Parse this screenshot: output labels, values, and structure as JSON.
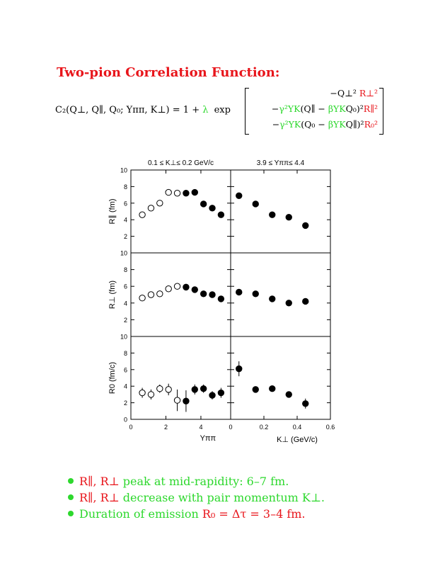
{
  "title": "Two-pion Correlation Function:",
  "equation": {
    "lhs": "C₂(Q⊥, Q∥, Q₀; Yππ, K⊥) = 1 + ",
    "lambda": "λ",
    "exp": " exp",
    "row1_a": "−Q⊥² ",
    "row1_b": "R⊥²",
    "row2_a": "−",
    "row2_b": "γ²YK",
    "row2_c": "(Q∥ − ",
    "row2_d": "βYK",
    "row2_e": "Q₀)²",
    "row2_f": "R∥²",
    "row3_a": "−",
    "row3_b": "γ²YK",
    "row3_c": "(Q₀ − ",
    "row3_d": "βYK",
    "row3_e": "Q∥)²",
    "row3_f": "R₀²"
  },
  "chart_data": {
    "type": "scatter",
    "column_headers": [
      "0.1 ≤ K⊥≤ 0.2 GeV/c",
      "3.9 ≤ Yππ≤ 4.4"
    ],
    "row_ylabels": [
      "R∥ (fm)",
      "R⊥ (fm)",
      "R0 (fm/c)"
    ],
    "ylim": [
      0,
      10
    ],
    "yticks": [
      2,
      4,
      6,
      8,
      10
    ],
    "yticks_bottom": [
      0,
      2,
      4,
      6,
      8,
      10
    ],
    "left_xlim": [
      0,
      5.7
    ],
    "left_xticks": [
      "0",
      "2",
      "4"
    ],
    "left_xlabel": "Yππ",
    "right_xlim": [
      0,
      0.6
    ],
    "right_xticks": [
      "0",
      "0.2",
      "0.4",
      "0.6"
    ],
    "right_xlabel": "K⊥ (GeV/c)",
    "colors": {
      "marker": "#000000",
      "title": "#e8151b",
      "green": "#2dd82d"
    },
    "panels": [
      {
        "row": 0,
        "col": 0,
        "open": {
          "x": [
            0.65,
            1.15,
            1.65,
            2.15,
            2.65
          ],
          "y": [
            4.6,
            5.4,
            6.0,
            7.3,
            7.2
          ]
        },
        "filled": {
          "x": [
            3.15,
            3.65,
            4.15,
            4.65,
            5.15
          ],
          "y": [
            7.2,
            7.3,
            5.9,
            5.4,
            4.6
          ]
        }
      },
      {
        "row": 0,
        "col": 1,
        "open": {
          "x": [],
          "y": []
        },
        "filled": {
          "x": [
            0.05,
            0.15,
            0.25,
            0.35,
            0.45
          ],
          "y": [
            6.9,
            5.9,
            4.6,
            4.3,
            3.3
          ]
        }
      },
      {
        "row": 1,
        "col": 0,
        "open": {
          "x": [
            0.65,
            1.15,
            1.65,
            2.15,
            2.65
          ],
          "y": [
            4.6,
            5.0,
            5.1,
            5.7,
            6.0
          ]
        },
        "filled": {
          "x": [
            3.15,
            3.65,
            4.15,
            4.65,
            5.15
          ],
          "y": [
            5.9,
            5.6,
            5.1,
            5.0,
            4.5
          ]
        }
      },
      {
        "row": 1,
        "col": 1,
        "open": {
          "x": [],
          "y": []
        },
        "filled": {
          "x": [
            0.05,
            0.15,
            0.25,
            0.35,
            0.45
          ],
          "y": [
            5.3,
            5.1,
            4.5,
            4.0,
            4.2
          ]
        }
      },
      {
        "row": 2,
        "col": 0,
        "open": {
          "x": [
            0.65,
            1.15,
            1.65,
            2.15,
            2.65
          ],
          "y": [
            3.2,
            3.0,
            3.7,
            3.6,
            2.3
          ],
          "err": [
            0.6,
            0.6,
            0.5,
            0.7,
            1.3
          ]
        },
        "filled": {
          "x": [
            3.15,
            3.65,
            4.15,
            4.65,
            5.15
          ],
          "y": [
            2.2,
            3.6,
            3.7,
            2.9,
            3.2
          ],
          "err": [
            1.3,
            0.6,
            0.5,
            0.5,
            0.6
          ]
        }
      },
      {
        "row": 2,
        "col": 1,
        "open": {
          "x": [],
          "y": [],
          "err": []
        },
        "filled": {
          "x": [
            0.05,
            0.15,
            0.25,
            0.35,
            0.45
          ],
          "y": [
            6.1,
            3.6,
            3.7,
            3.0,
            1.9
          ],
          "err": [
            0.9,
            0.3,
            0.3,
            0.3,
            0.6
          ]
        }
      }
    ]
  },
  "bullets": [
    {
      "r": "R∥, R⊥",
      "g": " peak at mid-rapidity:  6–7 fm."
    },
    {
      "r": "R∥, R⊥",
      "g": " decrease with pair momentum K⊥."
    },
    {
      "g": "Duration of emission ",
      "r": "R₀ = Δτ = 3–4 fm."
    }
  ]
}
